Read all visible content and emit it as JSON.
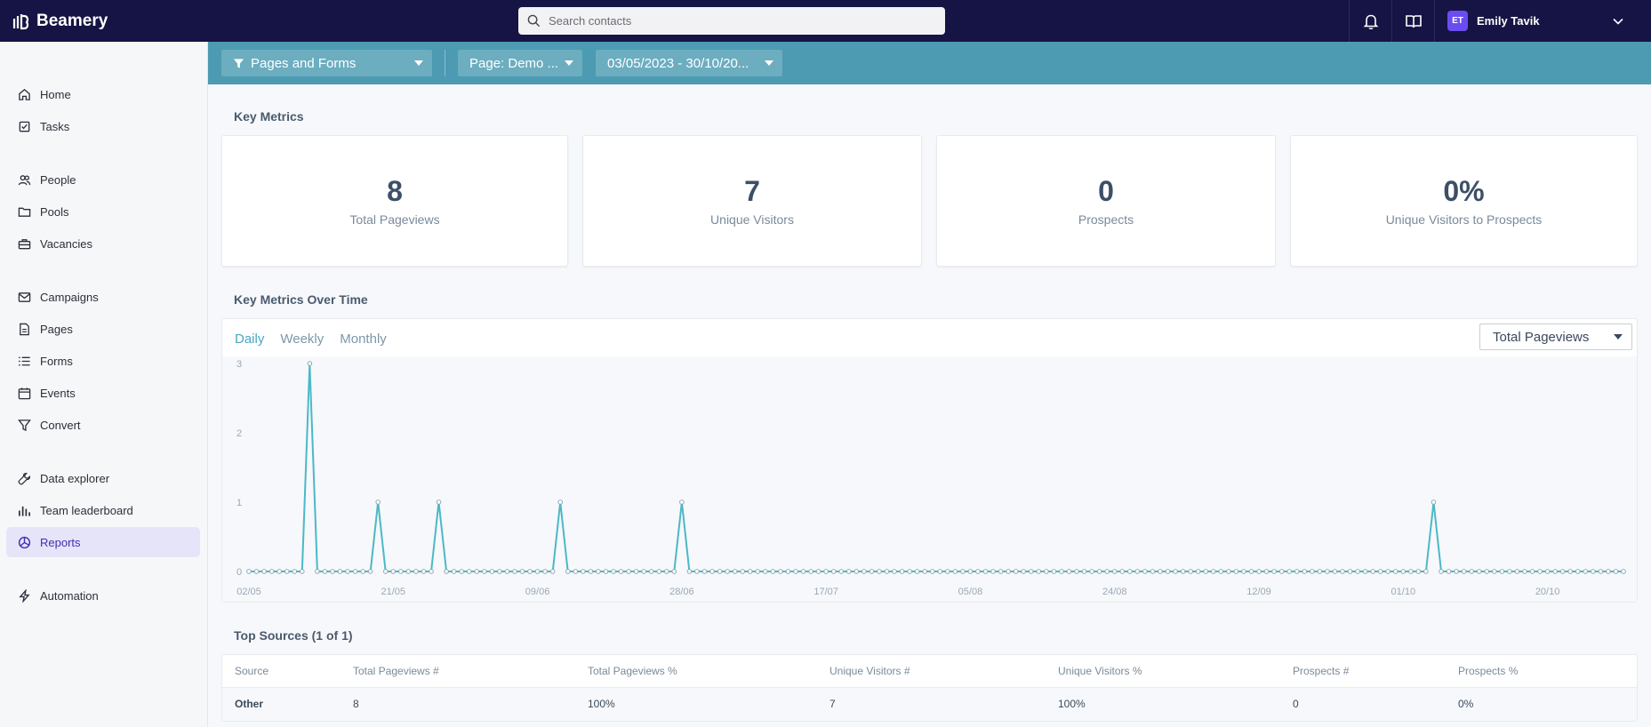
{
  "app": {
    "name": "Beamery"
  },
  "search": {
    "placeholder": "Search contacts"
  },
  "user": {
    "initials": "ET",
    "name": "Emily Tavik"
  },
  "sidebar": {
    "items": [
      {
        "label": "Home",
        "icon": "home-icon"
      },
      {
        "label": "Tasks",
        "icon": "tasks-icon"
      },
      {
        "label": "People",
        "icon": "people-icon"
      },
      {
        "label": "Pools",
        "icon": "folder-icon"
      },
      {
        "label": "Vacancies",
        "icon": "briefcase-icon"
      },
      {
        "label": "Campaigns",
        "icon": "mail-icon"
      },
      {
        "label": "Pages",
        "icon": "page-icon"
      },
      {
        "label": "Forms",
        "icon": "list-icon"
      },
      {
        "label": "Events",
        "icon": "calendar-icon"
      },
      {
        "label": "Convert",
        "icon": "funnel-icon"
      },
      {
        "label": "Data explorer",
        "icon": "wrench-icon"
      },
      {
        "label": "Team leaderboard",
        "icon": "bar-chart-icon"
      },
      {
        "label": "Reports",
        "icon": "pie-chart-icon",
        "active": true
      },
      {
        "label": "Automation",
        "icon": "bolt-icon"
      }
    ]
  },
  "filters": {
    "report": "Pages and Forms",
    "page": "Page: Demo ...",
    "date_range": "03/05/2023 - 30/10/20..."
  },
  "key_metrics": {
    "title": "Key Metrics",
    "cards": [
      {
        "value": "8",
        "label": "Total Pageviews"
      },
      {
        "value": "7",
        "label": "Unique Visitors"
      },
      {
        "value": "0",
        "label": "Prospects"
      },
      {
        "value": "0%",
        "label": "Unique Visitors to Prospects"
      }
    ]
  },
  "over_time": {
    "title": "Key Metrics Over Time",
    "tabs": [
      "Daily",
      "Weekly",
      "Monthly"
    ],
    "active_tab": "Daily",
    "metric_select": "Total Pageviews"
  },
  "chart_data": {
    "type": "line",
    "x_start": "02/05/2023",
    "x_end": "30/10/2023",
    "x_ticks": [
      "02/05",
      "21/05",
      "09/06",
      "28/06",
      "17/07",
      "05/08",
      "24/08",
      "12/09",
      "01/10",
      "20/10"
    ],
    "y_ticks": [
      "0",
      "1",
      "2",
      "3"
    ],
    "ylim": [
      0,
      3
    ],
    "grid": false,
    "color": "#4cb8c7",
    "nonzero_points": [
      {
        "x": "10/05",
        "y": 3
      },
      {
        "x": "19/05",
        "y": 1
      },
      {
        "x": "27/05",
        "y": 1
      },
      {
        "x": "12/06",
        "y": 1
      },
      {
        "x": "28/06",
        "y": 1
      },
      {
        "x": "05/10",
        "y": 1
      }
    ]
  },
  "top_sources": {
    "title": "Top Sources (1 of 1)",
    "columns": [
      "Source",
      "Total Pageviews #",
      "Total Pageviews %",
      "Unique Visitors #",
      "Unique Visitors %",
      "Prospects #",
      "Prospects %"
    ],
    "rows": [
      [
        "Other",
        "8",
        "100%",
        "7",
        "100%",
        "0",
        "0%"
      ]
    ]
  }
}
